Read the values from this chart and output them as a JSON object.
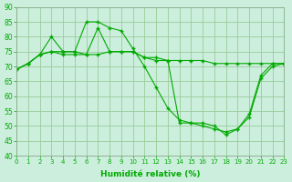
{
  "xlabel": "Humidité relative (%)",
  "bg_color": "#cceedd",
  "grid_color": "#99cc99",
  "line_color": "#00aa00",
  "marker": "+",
  "xlim": [
    0,
    23
  ],
  "ylim": [
    40,
    90
  ],
  "yticks": [
    40,
    45,
    50,
    55,
    60,
    65,
    70,
    75,
    80,
    85,
    90
  ],
  "xticks": [
    0,
    1,
    2,
    3,
    4,
    5,
    6,
    7,
    8,
    9,
    10,
    11,
    12,
    13,
    14,
    15,
    16,
    17,
    18,
    19,
    20,
    21,
    22,
    23
  ],
  "line1_x": [
    0,
    1,
    2,
    3,
    4,
    5,
    6,
    7,
    8,
    9,
    10,
    11,
    12,
    13,
    14,
    15,
    16,
    17,
    18,
    19,
    20,
    21,
    22,
    23
  ],
  "line1_y": [
    69,
    71,
    74,
    75,
    75,
    75,
    74,
    74,
    75,
    75,
    75,
    73,
    73,
    72,
    72,
    72,
    72,
    71,
    71,
    71,
    71,
    71,
    71,
    71
  ],
  "line2_x": [
    0,
    1,
    2,
    3,
    4,
    5,
    6,
    7,
    8,
    9,
    10,
    11,
    12,
    13,
    14,
    15,
    16,
    17,
    18,
    19,
    20,
    21,
    22,
    23
  ],
  "line2_y": [
    69,
    71,
    74,
    80,
    75,
    75,
    85,
    85,
    83,
    82,
    76,
    70,
    63,
    56,
    52,
    51,
    51,
    50,
    47,
    49,
    54,
    67,
    71,
    71
  ],
  "line3_x": [
    0,
    1,
    2,
    3,
    4,
    5,
    6,
    7,
    8,
    9,
    10,
    11,
    12,
    13,
    14,
    15,
    16,
    17,
    18,
    19,
    20,
    21,
    22,
    23
  ],
  "line3_y": [
    69,
    71,
    74,
    75,
    74,
    74,
    74,
    83,
    75,
    75,
    75,
    73,
    72,
    72,
    51,
    51,
    50,
    49,
    48,
    49,
    53,
    66,
    70,
    71
  ]
}
